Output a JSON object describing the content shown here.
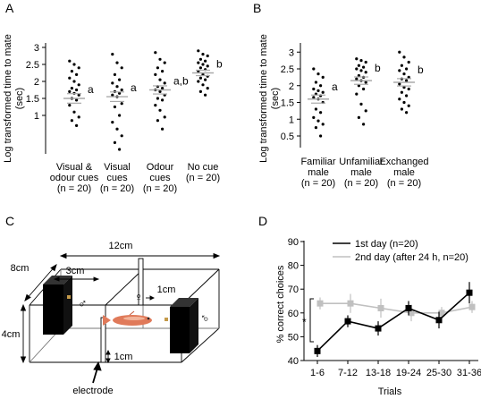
{
  "panels": {
    "a": "A",
    "b": "B",
    "c": "C",
    "d": "D"
  },
  "chart_data": [
    {
      "id": "A",
      "type": "scatter",
      "ylabel_line1": "Log transformed time to mate",
      "ylabel_line2": "(sec)",
      "yticks": [
        "1",
        "1.5",
        "2",
        "2.5",
        "3"
      ],
      "ylim": [
        0,
        3.2
      ],
      "categories": [
        {
          "lines": [
            "Visual &",
            "odour cues",
            "(n = 20)"
          ],
          "letter": "a",
          "mean": 1.5,
          "sem": 0.14,
          "points": [
            2.6,
            2.5,
            2.4,
            2.3,
            2.2,
            2.1,
            2.0,
            1.9,
            1.8,
            1.75,
            1.7,
            1.65,
            1.6,
            1.5,
            1.45,
            1.3,
            1.1,
            0.95,
            0.85,
            0.7
          ]
        },
        {
          "lines": [
            "Visual",
            "cues",
            "(n = 20)"
          ],
          "letter": "a",
          "mean": 1.55,
          "sem": 0.14,
          "points": [
            2.8,
            2.55,
            2.4,
            2.2,
            2.05,
            1.95,
            1.85,
            1.75,
            1.7,
            1.65,
            1.6,
            1.55,
            1.35,
            1.25,
            1.0,
            0.8,
            0.6,
            0.4,
            0.2,
            0.0
          ]
        },
        {
          "lines": [
            "Odour",
            "cues",
            "(n = 20)"
          ],
          "letter": "a,b",
          "mean": 1.75,
          "sem": 0.12,
          "points": [
            2.85,
            2.65,
            2.55,
            2.4,
            2.3,
            2.2,
            2.05,
            1.95,
            1.85,
            1.8,
            1.75,
            1.7,
            1.6,
            1.5,
            1.45,
            1.3,
            1.15,
            0.95,
            0.85,
            0.6
          ]
        },
        {
          "lines": [
            "No cue",
            "(n = 20)"
          ],
          "letter": "b",
          "mean": 2.25,
          "sem": 0.08,
          "points": [
            2.9,
            2.8,
            2.75,
            2.65,
            2.6,
            2.55,
            2.5,
            2.45,
            2.4,
            2.35,
            2.3,
            2.2,
            2.15,
            2.1,
            2.05,
            2.0,
            1.9,
            1.8,
            1.7,
            1.6
          ]
        }
      ]
    },
    {
      "id": "B",
      "type": "scatter",
      "ylabel_line1": "Log transformed time to mate",
      "ylabel_line2": "(sec)",
      "yticks": [
        "0.5",
        "1",
        "1.5",
        "2",
        "2.5",
        "3"
      ],
      "ylim": [
        0.3,
        3.2
      ],
      "categories": [
        {
          "lines": [
            "Familiar",
            "male",
            "(n = 20)"
          ],
          "letter": "a",
          "mean": 1.6,
          "sem": 0.12,
          "points": [
            2.5,
            2.35,
            2.25,
            2.1,
            2.0,
            1.9,
            1.85,
            1.8,
            1.75,
            1.7,
            1.65,
            1.6,
            1.5,
            1.3,
            1.2,
            1.05,
            0.95,
            0.85,
            0.75,
            0.5
          ]
        },
        {
          "lines": [
            "Unfamiliar",
            "male",
            "(n = 20)"
          ],
          "letter": "b",
          "mean": 2.15,
          "sem": 0.11,
          "points": [
            2.8,
            2.75,
            2.7,
            2.6,
            2.55,
            2.5,
            2.45,
            2.4,
            2.3,
            2.25,
            2.2,
            2.15,
            2.1,
            2.0,
            1.9,
            1.75,
            1.45,
            1.25,
            1.05,
            0.85
          ]
        },
        {
          "lines": [
            "Exchanged",
            "male",
            "(n = 20)"
          ],
          "letter": "b",
          "mean": 2.1,
          "sem": 0.11,
          "points": [
            3.0,
            2.85,
            2.7,
            2.6,
            2.5,
            2.45,
            2.35,
            2.25,
            2.2,
            2.15,
            2.05,
            1.95,
            1.9,
            1.8,
            1.7,
            1.6,
            1.5,
            1.4,
            1.3,
            1.2
          ]
        }
      ]
    },
    {
      "id": "D",
      "type": "line",
      "ylabel": "% correct choices",
      "xlabel": "Trials",
      "categories": [
        "1-6",
        "7-12",
        "13-18",
        "19-24",
        "25-30",
        "31-36"
      ],
      "yticks": [
        "40",
        "50",
        "60",
        "70",
        "80",
        "90"
      ],
      "ylim": [
        40,
        90
      ],
      "series": [
        {
          "name": "1st day (n=20)",
          "color": "#000000",
          "values": [
            44,
            56.5,
            53.5,
            62,
            57,
            68.5
          ],
          "err": [
            2.5,
            2.5,
            3,
            3,
            3.5,
            4.5
          ]
        },
        {
          "name": "2nd day (after 24 h, n=20)",
          "color": "#c0c0c0",
          "values": [
            64,
            64,
            62,
            60,
            60,
            62.5
          ],
          "err": [
            2.5,
            4,
            4,
            3.5,
            2.5,
            2.5
          ]
        }
      ],
      "significance": "*"
    }
  ],
  "diagram": {
    "dim_length": "12cm",
    "dim_depth": "8cm",
    "dim_box": "3cm",
    "dim_height": "4cm",
    "dim_gap": "1cm",
    "dim_bottom": "1cm",
    "electrode_label": "electrode",
    "male_symbol": "♂",
    "female_symbol": "♀"
  }
}
